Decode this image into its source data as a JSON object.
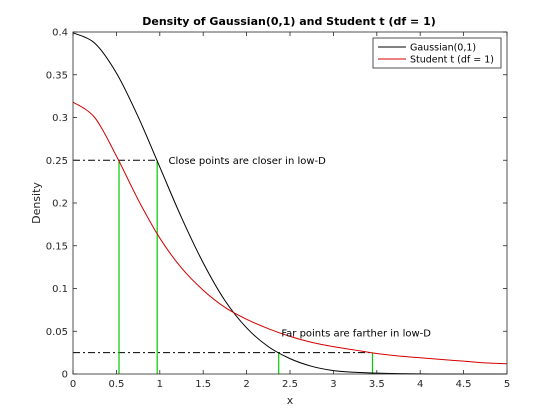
{
  "chart_data": {
    "type": "line",
    "title": "Density of Gaussian(0,1) and Student t (df = 1)",
    "xlabel": "x",
    "ylabel": "Density",
    "xlim": [
      0,
      5
    ],
    "ylim": [
      0,
      0.4
    ],
    "xticks": [
      "0",
      "0.5",
      "1",
      "1.5",
      "2",
      "2.5",
      "3",
      "3.5",
      "4",
      "4.5",
      "5"
    ],
    "yticks": [
      "0",
      "0.05",
      "0.1",
      "0.15",
      "0.2",
      "0.25",
      "0.3",
      "0.35",
      "0.4"
    ],
    "grid": false,
    "legend_position": "top-right",
    "series": [
      {
        "name": "Gaussian(0,1)",
        "color": "#000000",
        "x": [
          0,
          0.25,
          0.5,
          0.75,
          1,
          1.25,
          1.5,
          1.75,
          2,
          2.25,
          2.5,
          2.75,
          3,
          3.25,
          3.5,
          3.75,
          4,
          4.25,
          4.5,
          4.75,
          5
        ],
        "values": [
          0.399,
          0.387,
          0.352,
          0.301,
          0.242,
          0.183,
          0.13,
          0.086,
          0.054,
          0.032,
          0.018,
          0.009,
          0.004,
          0.002,
          0.001,
          0.0004,
          0.0001,
          0.0,
          0.0,
          0.0,
          0.0
        ]
      },
      {
        "name": "Student t (df = 1)",
        "color": "#d40000",
        "x": [
          0,
          0.25,
          0.5,
          0.75,
          1,
          1.25,
          1.5,
          1.75,
          2,
          2.25,
          2.5,
          2.75,
          3,
          3.25,
          3.5,
          3.75,
          4,
          4.25,
          4.5,
          4.75,
          5
        ],
        "values": [
          0.318,
          0.3,
          0.255,
          0.204,
          0.159,
          0.124,
          0.098,
          0.078,
          0.064,
          0.053,
          0.044,
          0.037,
          0.032,
          0.028,
          0.024,
          0.021,
          0.019,
          0.017,
          0.015,
          0.013,
          0.012
        ]
      }
    ],
    "reference_lines": [
      {
        "y": 0.25,
        "x_from": 0,
        "x_to": 0.97,
        "style": "dash-dot",
        "color": "#000000"
      },
      {
        "y": 0.025,
        "x_from": 0,
        "x_to": 3.45,
        "style": "dash-dot",
        "color": "#000000"
      }
    ],
    "vertical_markers": [
      {
        "x": 0.53,
        "y_top": 0.25,
        "color": "#00cc00"
      },
      {
        "x": 0.97,
        "y_top": 0.25,
        "color": "#00cc00"
      },
      {
        "x": 2.37,
        "y_top": 0.025,
        "color": "#00cc00"
      },
      {
        "x": 3.45,
        "y_top": 0.025,
        "color": "#00cc00"
      }
    ],
    "annotations": [
      {
        "text": "Close points are closer in low-D",
        "x": 1.1,
        "y": 0.25
      },
      {
        "text": "Far points are farther in low-D",
        "x": 2.4,
        "y": 0.048
      }
    ]
  }
}
